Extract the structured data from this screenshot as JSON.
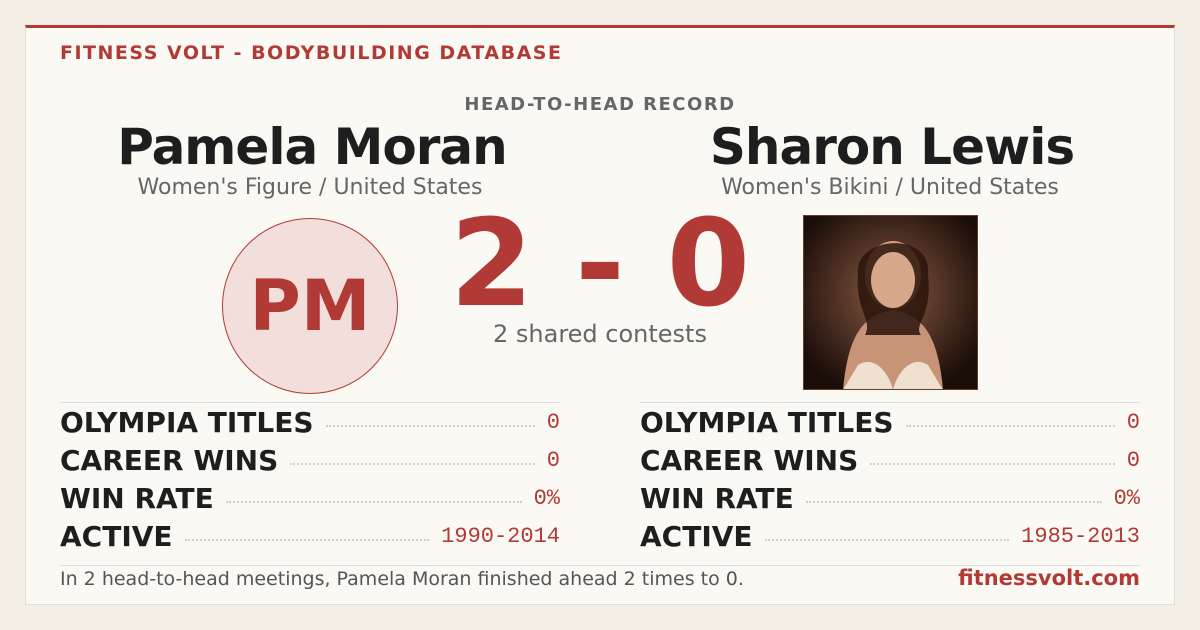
{
  "header": {
    "brand": "FITNESS VOLT - BODYBUILDING DATABASE",
    "title": "HEAD-TO-HEAD RECORD"
  },
  "left": {
    "name": "Pamela Moran",
    "subtitle": "Women's Figure / United States",
    "initials": "PM",
    "stats": [
      {
        "label": "OLYMPIA TITLES",
        "value": "0"
      },
      {
        "label": "CAREER WINS",
        "value": "0"
      },
      {
        "label": "WIN RATE",
        "value": "0%"
      },
      {
        "label": "ACTIVE",
        "value": "1990-2014"
      }
    ]
  },
  "right": {
    "name": "Sharon Lewis",
    "subtitle": "Women's Bikini / United States",
    "stats": [
      {
        "label": "OLYMPIA TITLES",
        "value": "0"
      },
      {
        "label": "CAREER WINS",
        "value": "0"
      },
      {
        "label": "WIN RATE",
        "value": "0%"
      },
      {
        "label": "ACTIVE",
        "value": "1985-2013"
      }
    ]
  },
  "score": "2 - 0",
  "shared": "2 shared contests",
  "footer": {
    "summary": "In 2 head-to-head meetings, Pamela Moran finished ahead 2 times to 0.",
    "site": "fitnessvolt.com"
  }
}
